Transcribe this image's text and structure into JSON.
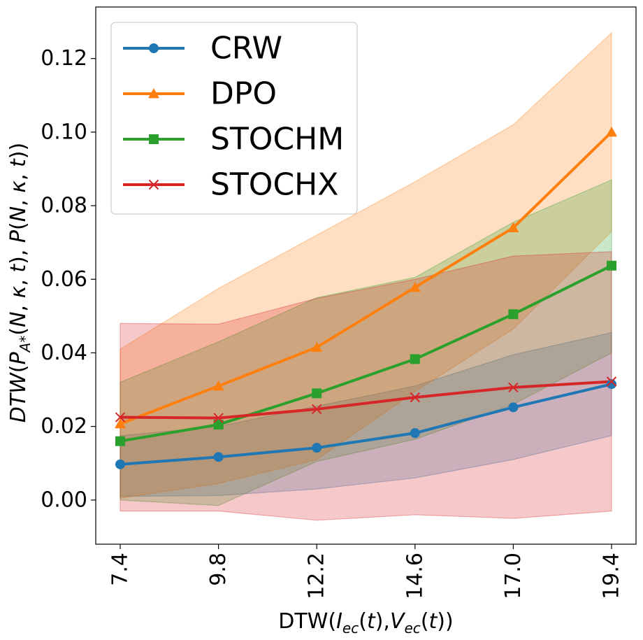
{
  "chart_data": {
    "type": "line",
    "title": "",
    "xlabel": "DTW(I_ec(t),V_ec(t))",
    "ylabel": "DTW(P_A*(N,κ,t),P(N,κ,t))",
    "x_tick_labels": [
      "7.4",
      "9.8",
      "12.2",
      "14.6",
      "17.0",
      "19.4"
    ],
    "y_tick_labels": [
      "0.00",
      "0.02",
      "0.04",
      "0.06",
      "0.08",
      "0.10",
      "0.12"
    ],
    "ylim": [
      -0.012,
      0.134
    ],
    "legend_position": "top-left",
    "series": [
      {
        "name": "CRW",
        "color": "#1f77b4",
        "marker": "circle",
        "values": [
          0.0097,
          0.0117,
          0.0142,
          0.0182,
          0.0252,
          0.0315
        ],
        "band_lower": [
          0.001,
          0.0012,
          0.003,
          0.006,
          0.011,
          0.0175
        ],
        "band_upper": [
          0.0175,
          0.02,
          0.0255,
          0.031,
          0.0395,
          0.0455
        ]
      },
      {
        "name": "DPO",
        "color": "#ff7f0e",
        "marker": "triangle",
        "values": [
          0.0207,
          0.031,
          0.0415,
          0.0578,
          0.074,
          0.1
        ],
        "band_lower": [
          0.0005,
          0.0045,
          0.011,
          0.0295,
          0.0465,
          0.073
        ],
        "band_upper": [
          0.041,
          0.0575,
          0.072,
          0.0865,
          0.102,
          0.127
        ]
      },
      {
        "name": "STOCHM",
        "color": "#2ca02c",
        "marker": "square",
        "values": [
          0.016,
          0.0205,
          0.029,
          0.0383,
          0.0505,
          0.0637
        ],
        "band_lower": [
          0.0,
          -0.0015,
          0.0105,
          0.0165,
          0.026,
          0.04
        ],
        "band_upper": [
          0.032,
          0.043,
          0.055,
          0.0605,
          0.0755,
          0.087
        ]
      },
      {
        "name": "STOCHX",
        "color": "#d62728",
        "marker": "x",
        "values": [
          0.0225,
          0.0223,
          0.0247,
          0.0279,
          0.0306,
          0.0322
        ],
        "band_lower": [
          -0.003,
          -0.003,
          -0.0055,
          -0.004,
          -0.005,
          -0.003
        ],
        "band_upper": [
          0.048,
          0.0478,
          0.0548,
          0.06,
          0.0663,
          0.0675
        ]
      }
    ]
  }
}
